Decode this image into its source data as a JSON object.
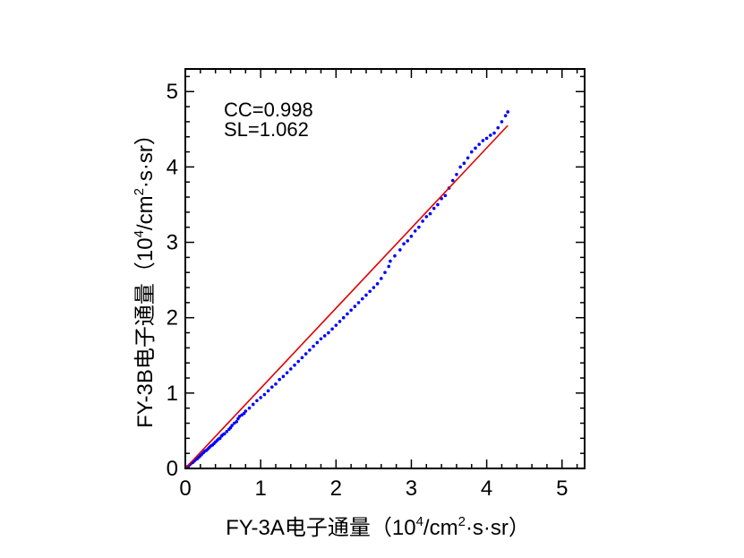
{
  "chart_data": {
    "type": "scatter",
    "title": "",
    "xlabel": {
      "prefix": "FY-3A电子通量（10",
      "exp1": "4",
      "mid": "/cm",
      "exp2": "2",
      "suffix": "·s·sr）"
    },
    "ylabel": {
      "prefix": "FY-3B电子通量（10",
      "exp1": "4",
      "mid": "/cm",
      "exp2": "2",
      "suffix": "·s·sr）"
    },
    "xlim": [
      0,
      5.3
    ],
    "ylim": [
      0,
      5.3
    ],
    "x_ticks": [
      "0",
      "1",
      "2",
      "3",
      "4",
      "5"
    ],
    "y_ticks": [
      "0",
      "1",
      "2",
      "3",
      "4",
      "5"
    ],
    "grid": false,
    "annotations": [
      "CC=0.998",
      "SL=1.062"
    ],
    "fit_line": {
      "x": [
        0,
        4.28
      ],
      "y": [
        0,
        4.55
      ],
      "color": "#e00000"
    },
    "points_color": "#0000ff",
    "series": [
      {
        "points": [
          [
            0.02,
            0.02
          ],
          [
            0.04,
            0.03
          ],
          [
            0.06,
            0.05
          ],
          [
            0.08,
            0.07
          ],
          [
            0.1,
            0.08
          ],
          [
            0.12,
            0.1
          ],
          [
            0.14,
            0.12
          ],
          [
            0.16,
            0.13
          ],
          [
            0.18,
            0.15
          ],
          [
            0.2,
            0.17
          ],
          [
            0.22,
            0.19
          ],
          [
            0.24,
            0.21
          ],
          [
            0.26,
            0.23
          ],
          [
            0.28,
            0.24
          ],
          [
            0.3,
            0.26
          ],
          [
            0.32,
            0.28
          ],
          [
            0.34,
            0.3
          ],
          [
            0.36,
            0.31
          ],
          [
            0.38,
            0.33
          ],
          [
            0.4,
            0.35
          ],
          [
            0.42,
            0.37
          ],
          [
            0.44,
            0.39
          ],
          [
            0.46,
            0.4
          ],
          [
            0.48,
            0.43
          ],
          [
            0.5,
            0.45
          ],
          [
            0.52,
            0.46
          ],
          [
            0.55,
            0.49
          ],
          [
            0.58,
            0.52
          ],
          [
            0.6,
            0.54
          ],
          [
            0.62,
            0.57
          ],
          [
            0.65,
            0.6
          ],
          [
            0.68,
            0.62
          ],
          [
            0.7,
            0.66
          ],
          [
            0.72,
            0.69
          ],
          [
            0.75,
            0.71
          ],
          [
            0.78,
            0.73
          ],
          [
            0.8,
            0.76
          ],
          [
            0.85,
            0.8
          ],
          [
            0.9,
            0.85
          ],
          [
            0.95,
            0.9
          ],
          [
            1.0,
            0.94
          ],
          [
            1.05,
            0.98
          ],
          [
            1.1,
            1.03
          ],
          [
            1.15,
            1.08
          ],
          [
            1.2,
            1.12
          ],
          [
            1.25,
            1.18
          ],
          [
            1.3,
            1.22
          ],
          [
            1.35,
            1.27
          ],
          [
            1.4,
            1.32
          ],
          [
            1.45,
            1.37
          ],
          [
            1.5,
            1.42
          ],
          [
            1.55,
            1.47
          ],
          [
            1.6,
            1.52
          ],
          [
            1.65,
            1.57
          ],
          [
            1.7,
            1.62
          ],
          [
            1.75,
            1.67
          ],
          [
            1.8,
            1.72
          ],
          [
            1.85,
            1.76
          ],
          [
            1.9,
            1.8
          ],
          [
            1.95,
            1.85
          ],
          [
            2.0,
            1.9
          ],
          [
            2.05,
            1.95
          ],
          [
            2.1,
            2.0
          ],
          [
            2.15,
            2.05
          ],
          [
            2.2,
            2.1
          ],
          [
            2.25,
            2.15
          ],
          [
            2.3,
            2.2
          ],
          [
            2.35,
            2.25
          ],
          [
            2.4,
            2.3
          ],
          [
            2.45,
            2.35
          ],
          [
            2.5,
            2.4
          ],
          [
            2.55,
            2.45
          ],
          [
            2.6,
            2.52
          ],
          [
            2.65,
            2.6
          ],
          [
            2.7,
            2.68
          ],
          [
            2.72,
            2.75
          ],
          [
            2.78,
            2.82
          ],
          [
            2.85,
            2.9
          ],
          [
            2.9,
            2.98
          ],
          [
            2.95,
            3.02
          ],
          [
            3.0,
            3.08
          ],
          [
            3.05,
            3.15
          ],
          [
            3.1,
            3.2
          ],
          [
            3.15,
            3.28
          ],
          [
            3.2,
            3.34
          ],
          [
            3.25,
            3.38
          ],
          [
            3.3,
            3.45
          ],
          [
            3.35,
            3.5
          ],
          [
            3.4,
            3.58
          ],
          [
            3.45,
            3.62
          ],
          [
            3.5,
            3.72
          ],
          [
            3.55,
            3.82
          ],
          [
            3.6,
            3.9
          ],
          [
            3.65,
            4.0
          ],
          [
            3.7,
            4.05
          ],
          [
            3.75,
            4.12
          ],
          [
            3.8,
            4.2
          ],
          [
            3.85,
            4.25
          ],
          [
            3.9,
            4.3
          ],
          [
            3.95,
            4.35
          ],
          [
            4.0,
            4.38
          ],
          [
            4.05,
            4.42
          ],
          [
            4.1,
            4.45
          ],
          [
            4.15,
            4.52
          ],
          [
            4.2,
            4.6
          ],
          [
            4.25,
            4.68
          ],
          [
            4.28,
            4.73
          ]
        ]
      }
    ]
  }
}
